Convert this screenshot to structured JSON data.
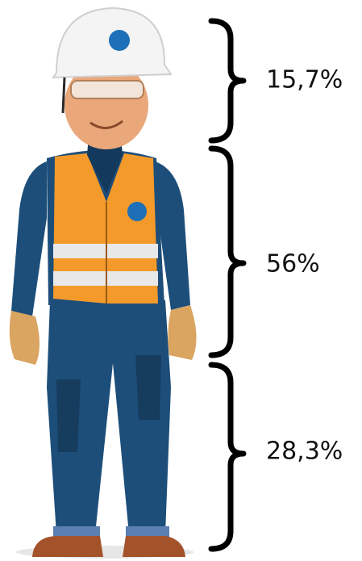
{
  "segments": [
    {
      "label": "15,7%"
    },
    {
      "label": "56%"
    },
    {
      "label": "28,3%"
    }
  ]
}
